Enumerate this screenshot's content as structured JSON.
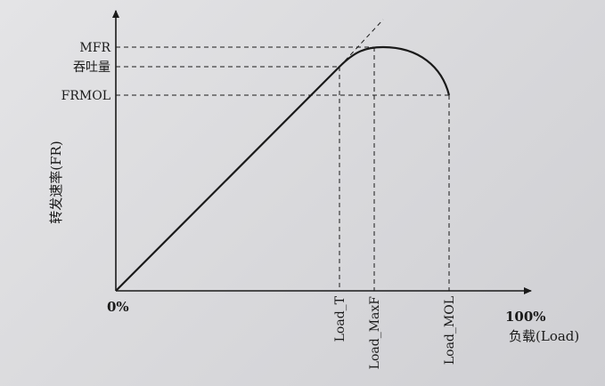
{
  "diagram": {
    "y_axis_label": "转发速率(FR)",
    "x_axis_label": "负载(Load)",
    "origin_label": "0%",
    "x_end_label": "100%",
    "y_levels": [
      {
        "id": "mfr",
        "label": "MFR"
      },
      {
        "id": "throughput",
        "label": "吞吐量"
      },
      {
        "id": "frmol",
        "label": "FRMOL"
      }
    ],
    "x_markers": [
      {
        "id": "load-t",
        "label": "Load_T"
      },
      {
        "id": "load-maxf",
        "label": "Load_MaxF"
      },
      {
        "id": "load-mol",
        "label": "Load_MOL"
      }
    ],
    "colors": {
      "ink": "#1a1a1a",
      "paper": "#dcdcde"
    }
  }
}
